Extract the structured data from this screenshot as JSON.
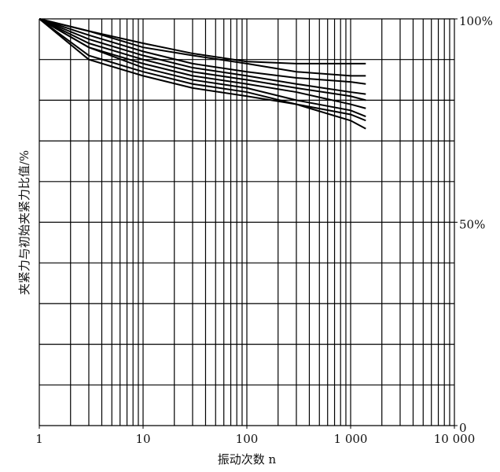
{
  "chart_data": {
    "type": "line",
    "xlabel": "振动次数 n",
    "ylabel": "夹紧力与初始夹紧力比值/%",
    "xscale": "log",
    "xlim": [
      1,
      10000
    ],
    "ylim": [
      0,
      100
    ],
    "xticks": [
      1,
      10,
      100,
      {
        "value": 1000,
        "label": "1 000"
      },
      {
        "value": 10000,
        "label": "10 000"
      }
    ],
    "yticks": [
      {
        "value": 0,
        "label": "0"
      },
      {
        "value": 50,
        "label": "50%"
      },
      {
        "value": 100,
        "label": "100%"
      }
    ],
    "yaxis_side": "right",
    "xgrid": [
      1,
      2,
      3,
      4,
      5,
      6,
      7,
      8,
      9,
      10,
      20,
      30,
      40,
      50,
      60,
      70,
      80,
      90,
      100,
      200,
      300,
      400,
      500,
      600,
      700,
      800,
      900,
      1000,
      2000,
      3000,
      4000,
      5000,
      6000,
      7000,
      8000,
      9000,
      10000
    ],
    "ygrid": [
      0,
      10,
      20,
      30,
      40,
      50,
      60,
      70,
      80,
      90,
      100
    ],
    "color": "#000000",
    "x": [
      1,
      3,
      10,
      30,
      100,
      300,
      1000,
      1400
    ],
    "series": [
      {
        "values": [
          100,
          97,
          94,
          91.5,
          89.5,
          89,
          89,
          89
        ]
      },
      {
        "values": [
          100,
          97,
          93,
          91,
          89,
          87,
          86,
          86
        ]
      },
      {
        "values": [
          100,
          96,
          92,
          89,
          87,
          85.5,
          84.5,
          84
        ]
      },
      {
        "values": [
          100,
          95,
          91,
          88,
          86,
          84,
          82,
          81.5
        ]
      },
      {
        "values": [
          100,
          94,
          90,
          87,
          85,
          83,
          81,
          80
        ]
      },
      {
        "values": [
          100,
          93,
          89,
          86,
          84,
          82,
          79,
          78
        ]
      },
      {
        "values": [
          100,
          93,
          88,
          85,
          83,
          80,
          77.5,
          76
        ]
      },
      {
        "values": [
          100,
          91,
          87,
          84,
          82,
          79,
          76.5,
          75
        ]
      },
      {
        "values": [
          100,
          90,
          86,
          83,
          81,
          79,
          75,
          73
        ]
      }
    ]
  }
}
